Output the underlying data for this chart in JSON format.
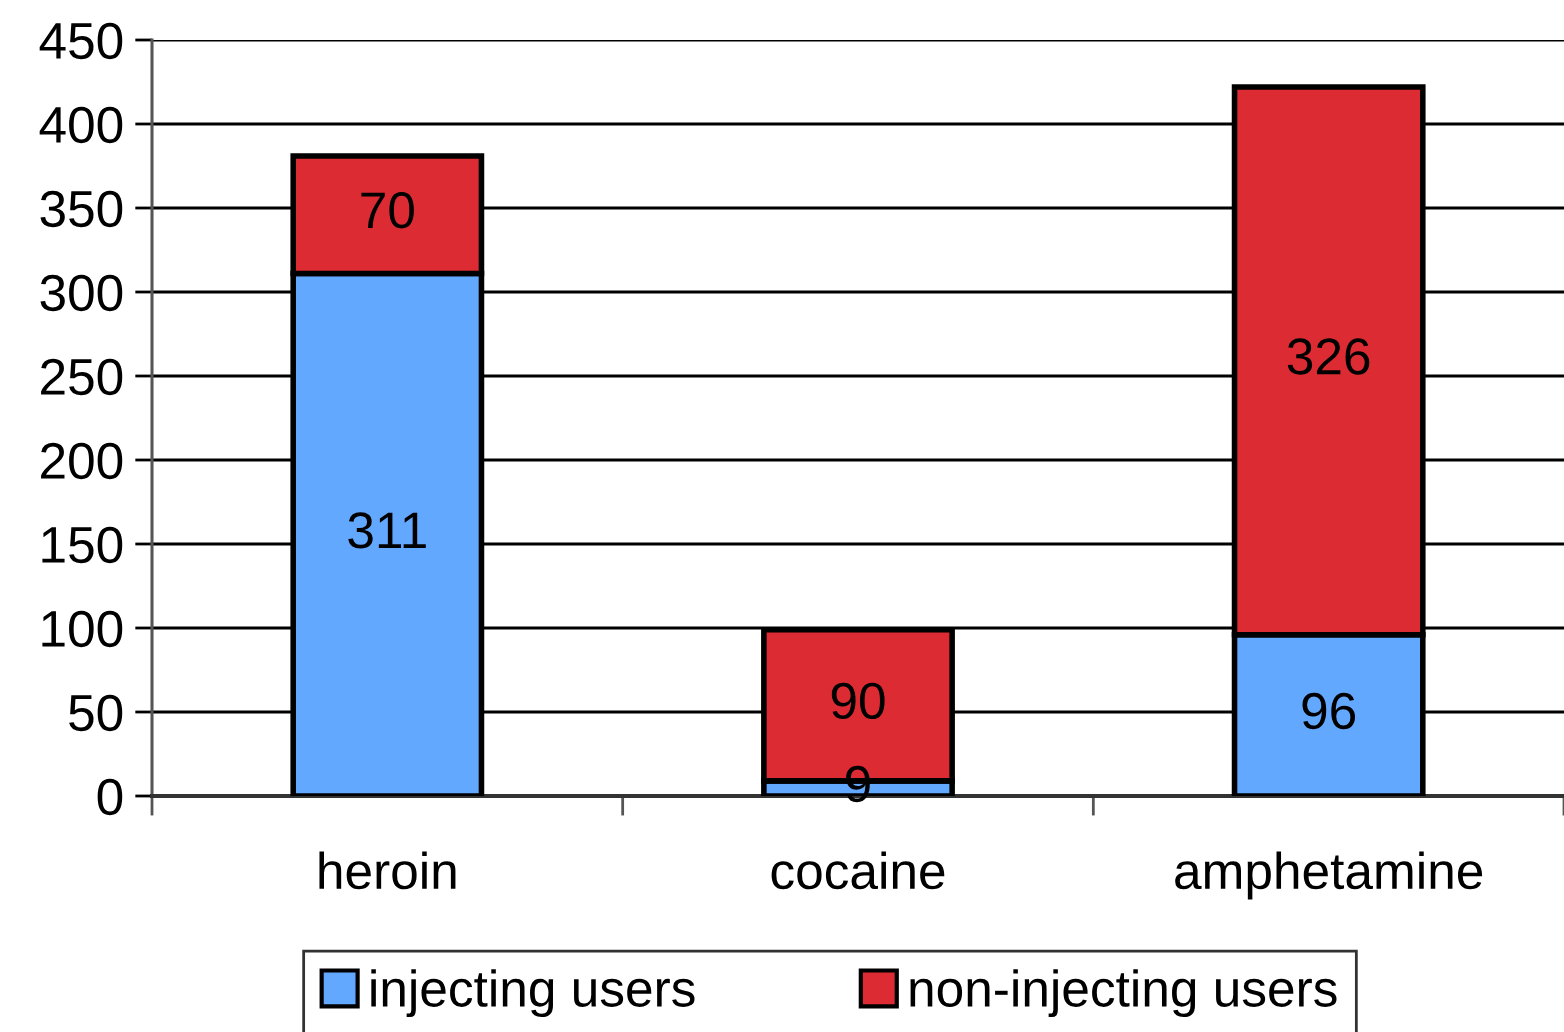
{
  "chart_data": {
    "type": "bar",
    "stacked": true,
    "categories": [
      "heroin",
      "cocaine",
      "amphetamine"
    ],
    "series": [
      {
        "name": "injecting users",
        "color": "#63a8ff",
        "values": [
          311,
          9,
          96
        ]
      },
      {
        "name": "non-injecting users",
        "color": "#dd2b33",
        "values": [
          70,
          90,
          326
        ]
      }
    ],
    "ylim": [
      0,
      450
    ],
    "yticks": [
      0,
      50,
      100,
      150,
      200,
      250,
      300,
      350,
      400,
      450
    ],
    "grid": "y",
    "legend": "bottom",
    "data_labels": true
  }
}
